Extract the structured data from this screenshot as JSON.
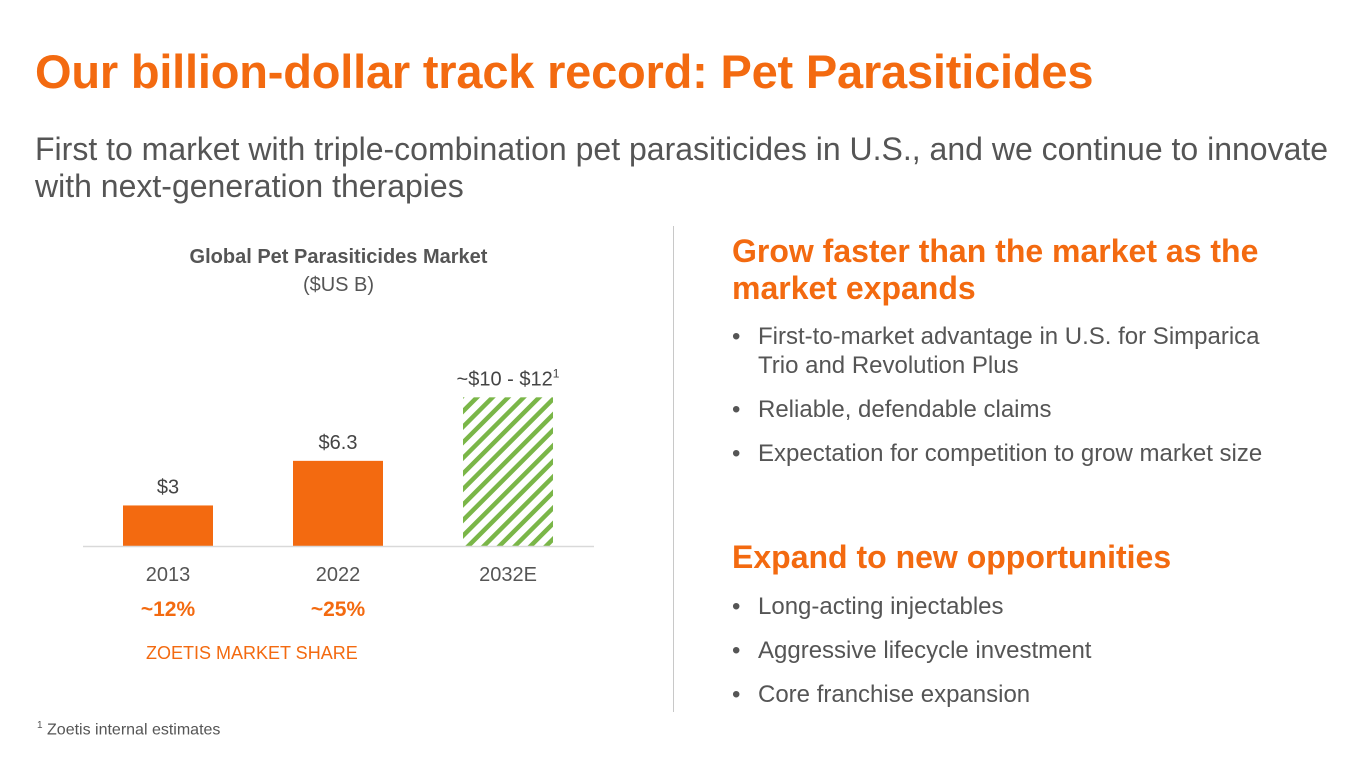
{
  "slide": {
    "title": "Our billion-dollar track record: Pet Parasiticides",
    "subtitle": "First to market with triple-combination pet parasiticides in U.S., and we continue to innovate with next-generation therapies"
  },
  "chart_data": {
    "type": "bar",
    "title": "Global Pet Parasiticides Market",
    "subtitle": "($US B)",
    "categories": [
      "2013",
      "2022",
      "2032E"
    ],
    "values": [
      3,
      6.3,
      11
    ],
    "value_labels": [
      "$3",
      "$6.3",
      "~$10 - $12"
    ],
    "value_label_superscripts": [
      "",
      "",
      "1"
    ],
    "patterned": [
      false,
      false,
      true
    ],
    "range_2032E": [
      10,
      12
    ],
    "ylim": [
      0,
      12.8
    ],
    "grid": false,
    "colors": {
      "bar": "#f36a10",
      "hatch": "#7ab648",
      "axis": "#d9d9d9"
    }
  },
  "market_share": {
    "values": [
      "~12%",
      "~25%"
    ],
    "label": "ZOETIS MARKET SHARE"
  },
  "footnote": {
    "marker": "1",
    "text": "Zoetis internal estimates"
  },
  "sections": [
    {
      "heading": "Grow faster than the market as the market expands",
      "bullets": [
        "First-to-market advantage in U.S. for Simparica Trio and Revolution Plus",
        "Reliable, defendable claims",
        "Expectation for competition to grow market size"
      ]
    },
    {
      "heading": "Expand to new opportunities",
      "bullets": [
        "Long-acting injectables",
        "Aggressive lifecycle investment",
        "Core franchise expansion"
      ]
    }
  ],
  "bullet_symbol": "•",
  "colors": {
    "accent": "#f36a10",
    "text": "#555555"
  }
}
